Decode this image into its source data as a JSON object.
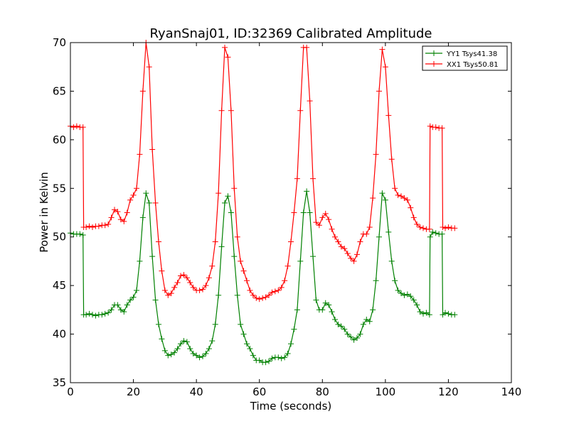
{
  "chart_data": {
    "type": "line",
    "title": "RyanSnaj01, ID:32369 Calibrated Amplitude",
    "xlabel": "Time (seconds)",
    "ylabel": "Power in Kelvin",
    "xlim": [
      0,
      140
    ],
    "ylim": [
      35,
      70
    ],
    "xticks": [
      0,
      20,
      40,
      60,
      80,
      100,
      120,
      140
    ],
    "yticks": [
      35,
      40,
      45,
      50,
      55,
      60,
      65,
      70
    ],
    "grid": false,
    "legend_position": "top-right",
    "marker": "+",
    "series": [
      {
        "name": "YY1 Tsys41.38",
        "color": "#008000",
        "points": [
          [
            0,
            50.4
          ],
          [
            1,
            50.3
          ],
          [
            2,
            50.3
          ],
          [
            3,
            50.3
          ],
          [
            4,
            50.2
          ],
          [
            4.2,
            42.0
          ],
          [
            5,
            42.0
          ],
          [
            6,
            42.1
          ],
          [
            7,
            42.0
          ],
          [
            8,
            41.9
          ],
          [
            9,
            42.0
          ],
          [
            10,
            42.0
          ],
          [
            11,
            42.1
          ],
          [
            12,
            42.2
          ],
          [
            13,
            42.5
          ],
          [
            14,
            43.0
          ],
          [
            15,
            43.0
          ],
          [
            16,
            42.5
          ],
          [
            17,
            42.3
          ],
          [
            18,
            43.0
          ],
          [
            19,
            43.5
          ],
          [
            20,
            43.8
          ],
          [
            21,
            44.5
          ],
          [
            22,
            47.5
          ],
          [
            23,
            52.0
          ],
          [
            24,
            54.5
          ],
          [
            25,
            53.5
          ],
          [
            26,
            48.0
          ],
          [
            27,
            43.5
          ],
          [
            28,
            41.0
          ],
          [
            29,
            39.5
          ],
          [
            30,
            38.3
          ],
          [
            31,
            37.8
          ],
          [
            32,
            37.9
          ],
          [
            33,
            38.1
          ],
          [
            34,
            38.5
          ],
          [
            35,
            39.0
          ],
          [
            36,
            39.3
          ],
          [
            37,
            39.2
          ],
          [
            38,
            38.5
          ],
          [
            39,
            38.0
          ],
          [
            40,
            37.8
          ],
          [
            41,
            37.6
          ],
          [
            42,
            37.7
          ],
          [
            43,
            38.0
          ],
          [
            44,
            38.5
          ],
          [
            45,
            39.3
          ],
          [
            46,
            41.0
          ],
          [
            47,
            44.0
          ],
          [
            48,
            49.0
          ],
          [
            49,
            53.5
          ],
          [
            50,
            54.2
          ],
          [
            51,
            52.5
          ],
          [
            52,
            48.0
          ],
          [
            53,
            44.0
          ],
          [
            54,
            41.0
          ],
          [
            55,
            40.0
          ],
          [
            56,
            39.0
          ],
          [
            57,
            38.5
          ],
          [
            58,
            37.8
          ],
          [
            59,
            37.3
          ],
          [
            60,
            37.3
          ],
          [
            61,
            37.1
          ],
          [
            62,
            37.1
          ],
          [
            63,
            37.2
          ],
          [
            64,
            37.5
          ],
          [
            65,
            37.6
          ],
          [
            66,
            37.6
          ],
          [
            67,
            37.5
          ],
          [
            68,
            37.6
          ],
          [
            69,
            38.0
          ],
          [
            70,
            39.0
          ],
          [
            71,
            40.5
          ],
          [
            72,
            42.5
          ],
          [
            73,
            47.5
          ],
          [
            74,
            52.5
          ],
          [
            75,
            54.7
          ],
          [
            76,
            52.5
          ],
          [
            77,
            48.0
          ],
          [
            78,
            43.5
          ],
          [
            79,
            42.5
          ],
          [
            80,
            42.5
          ],
          [
            81,
            43.2
          ],
          [
            82,
            43.0
          ],
          [
            83,
            42.3
          ],
          [
            84,
            41.5
          ],
          [
            85,
            41.0
          ],
          [
            86,
            40.8
          ],
          [
            87,
            40.5
          ],
          [
            88,
            40.0
          ],
          [
            89,
            39.7
          ],
          [
            90,
            39.4
          ],
          [
            91,
            39.6
          ],
          [
            92,
            40.0
          ],
          [
            93,
            41.0
          ],
          [
            94,
            41.5
          ],
          [
            95,
            41.3
          ],
          [
            96,
            42.5
          ],
          [
            97,
            45.5
          ],
          [
            98,
            50.0
          ],
          [
            99,
            54.5
          ],
          [
            100,
            53.8
          ],
          [
            101,
            50.5
          ],
          [
            102,
            47.5
          ],
          [
            103,
            45.5
          ],
          [
            104,
            44.5
          ],
          [
            105,
            44.2
          ],
          [
            106,
            44.0
          ],
          [
            107,
            44.1
          ],
          [
            108,
            43.9
          ],
          [
            109,
            43.5
          ],
          [
            110,
            43.0
          ],
          [
            111,
            42.3
          ],
          [
            112,
            42.1
          ],
          [
            113,
            42.2
          ],
          [
            114,
            42.0
          ],
          [
            114.2,
            50.0
          ],
          [
            115,
            50.5
          ],
          [
            116,
            50.4
          ],
          [
            117,
            50.3
          ],
          [
            118,
            50.3
          ],
          [
            118.2,
            42.0
          ],
          [
            119,
            42.2
          ],
          [
            120,
            42.1
          ],
          [
            121,
            42.0
          ],
          [
            122,
            42.0
          ]
        ]
      },
      {
        "name": "XX1 Tsys50.81",
        "color": "#ff0000",
        "points": [
          [
            0,
            61.4
          ],
          [
            1,
            61.3
          ],
          [
            2,
            61.4
          ],
          [
            3,
            61.3
          ],
          [
            4,
            61.3
          ],
          [
            4.2,
            51.0
          ],
          [
            5,
            51.0
          ],
          [
            6,
            51.1
          ],
          [
            7,
            51.0
          ],
          [
            8,
            51.1
          ],
          [
            9,
            51.1
          ],
          [
            10,
            51.2
          ],
          [
            11,
            51.2
          ],
          [
            12,
            51.3
          ],
          [
            13,
            52.0
          ],
          [
            14,
            52.8
          ],
          [
            15,
            52.6
          ],
          [
            16,
            51.8
          ],
          [
            17,
            51.6
          ],
          [
            18,
            52.5
          ],
          [
            19,
            53.8
          ],
          [
            20,
            54.3
          ],
          [
            21,
            55.0
          ],
          [
            22,
            58.5
          ],
          [
            23,
            65.0
          ],
          [
            24,
            70.0
          ],
          [
            25,
            67.5
          ],
          [
            26,
            59.0
          ],
          [
            27,
            53.5
          ],
          [
            28,
            49.5
          ],
          [
            29,
            46.5
          ],
          [
            30,
            44.5
          ],
          [
            31,
            44.0
          ],
          [
            32,
            44.2
          ],
          [
            33,
            44.8
          ],
          [
            34,
            45.3
          ],
          [
            35,
            46.0
          ],
          [
            36,
            46.1
          ],
          [
            37,
            45.8
          ],
          [
            38,
            45.3
          ],
          [
            39,
            44.8
          ],
          [
            40,
            44.5
          ],
          [
            41,
            44.5
          ],
          [
            42,
            44.6
          ],
          [
            43,
            45.0
          ],
          [
            44,
            45.8
          ],
          [
            45,
            47.0
          ],
          [
            46,
            49.5
          ],
          [
            47,
            54.5
          ],
          [
            48,
            63.0
          ],
          [
            49,
            69.5
          ],
          [
            50,
            68.5
          ],
          [
            51,
            63.0
          ],
          [
            52,
            55.0
          ],
          [
            53,
            50.0
          ],
          [
            54,
            47.5
          ],
          [
            55,
            46.5
          ],
          [
            56,
            45.5
          ],
          [
            57,
            44.5
          ],
          [
            58,
            44.0
          ],
          [
            59,
            43.7
          ],
          [
            60,
            43.6
          ],
          [
            61,
            43.7
          ],
          [
            62,
            43.8
          ],
          [
            63,
            44.0
          ],
          [
            64,
            44.3
          ],
          [
            65,
            44.4
          ],
          [
            66,
            44.5
          ],
          [
            67,
            44.8
          ],
          [
            68,
            45.5
          ],
          [
            69,
            47.0
          ],
          [
            70,
            49.5
          ],
          [
            71,
            52.5
          ],
          [
            72,
            56.0
          ],
          [
            73,
            63.0
          ],
          [
            74,
            69.5
          ],
          [
            75,
            69.5
          ],
          [
            76,
            64.0
          ],
          [
            77,
            56.0
          ],
          [
            78,
            51.5
          ],
          [
            79,
            51.2
          ],
          [
            80,
            52.0
          ],
          [
            81,
            52.4
          ],
          [
            82,
            51.8
          ],
          [
            83,
            50.8
          ],
          [
            84,
            50.0
          ],
          [
            85,
            49.5
          ],
          [
            86,
            49.0
          ],
          [
            87,
            48.8
          ],
          [
            88,
            48.3
          ],
          [
            89,
            47.8
          ],
          [
            90,
            47.5
          ],
          [
            91,
            48.2
          ],
          [
            92,
            49.5
          ],
          [
            93,
            50.3
          ],
          [
            94,
            50.3
          ],
          [
            95,
            51.0
          ],
          [
            96,
            54.0
          ],
          [
            97,
            58.5
          ],
          [
            98,
            65.0
          ],
          [
            99,
            69.3
          ],
          [
            100,
            67.5
          ],
          [
            101,
            62.5
          ],
          [
            102,
            58.0
          ],
          [
            103,
            55.0
          ],
          [
            104,
            54.3
          ],
          [
            105,
            54.2
          ],
          [
            106,
            54.0
          ],
          [
            107,
            53.8
          ],
          [
            108,
            53.0
          ],
          [
            109,
            52.0
          ],
          [
            110,
            51.3
          ],
          [
            111,
            51.0
          ],
          [
            112,
            50.9
          ],
          [
            113,
            50.8
          ],
          [
            114,
            50.8
          ],
          [
            114.2,
            61.4
          ],
          [
            115,
            61.3
          ],
          [
            116,
            61.3
          ],
          [
            117,
            61.2
          ],
          [
            118,
            61.2
          ],
          [
            118.2,
            51.0
          ],
          [
            119,
            50.9
          ],
          [
            120,
            51.0
          ],
          [
            121,
            50.9
          ],
          [
            122,
            50.9
          ]
        ]
      }
    ]
  }
}
